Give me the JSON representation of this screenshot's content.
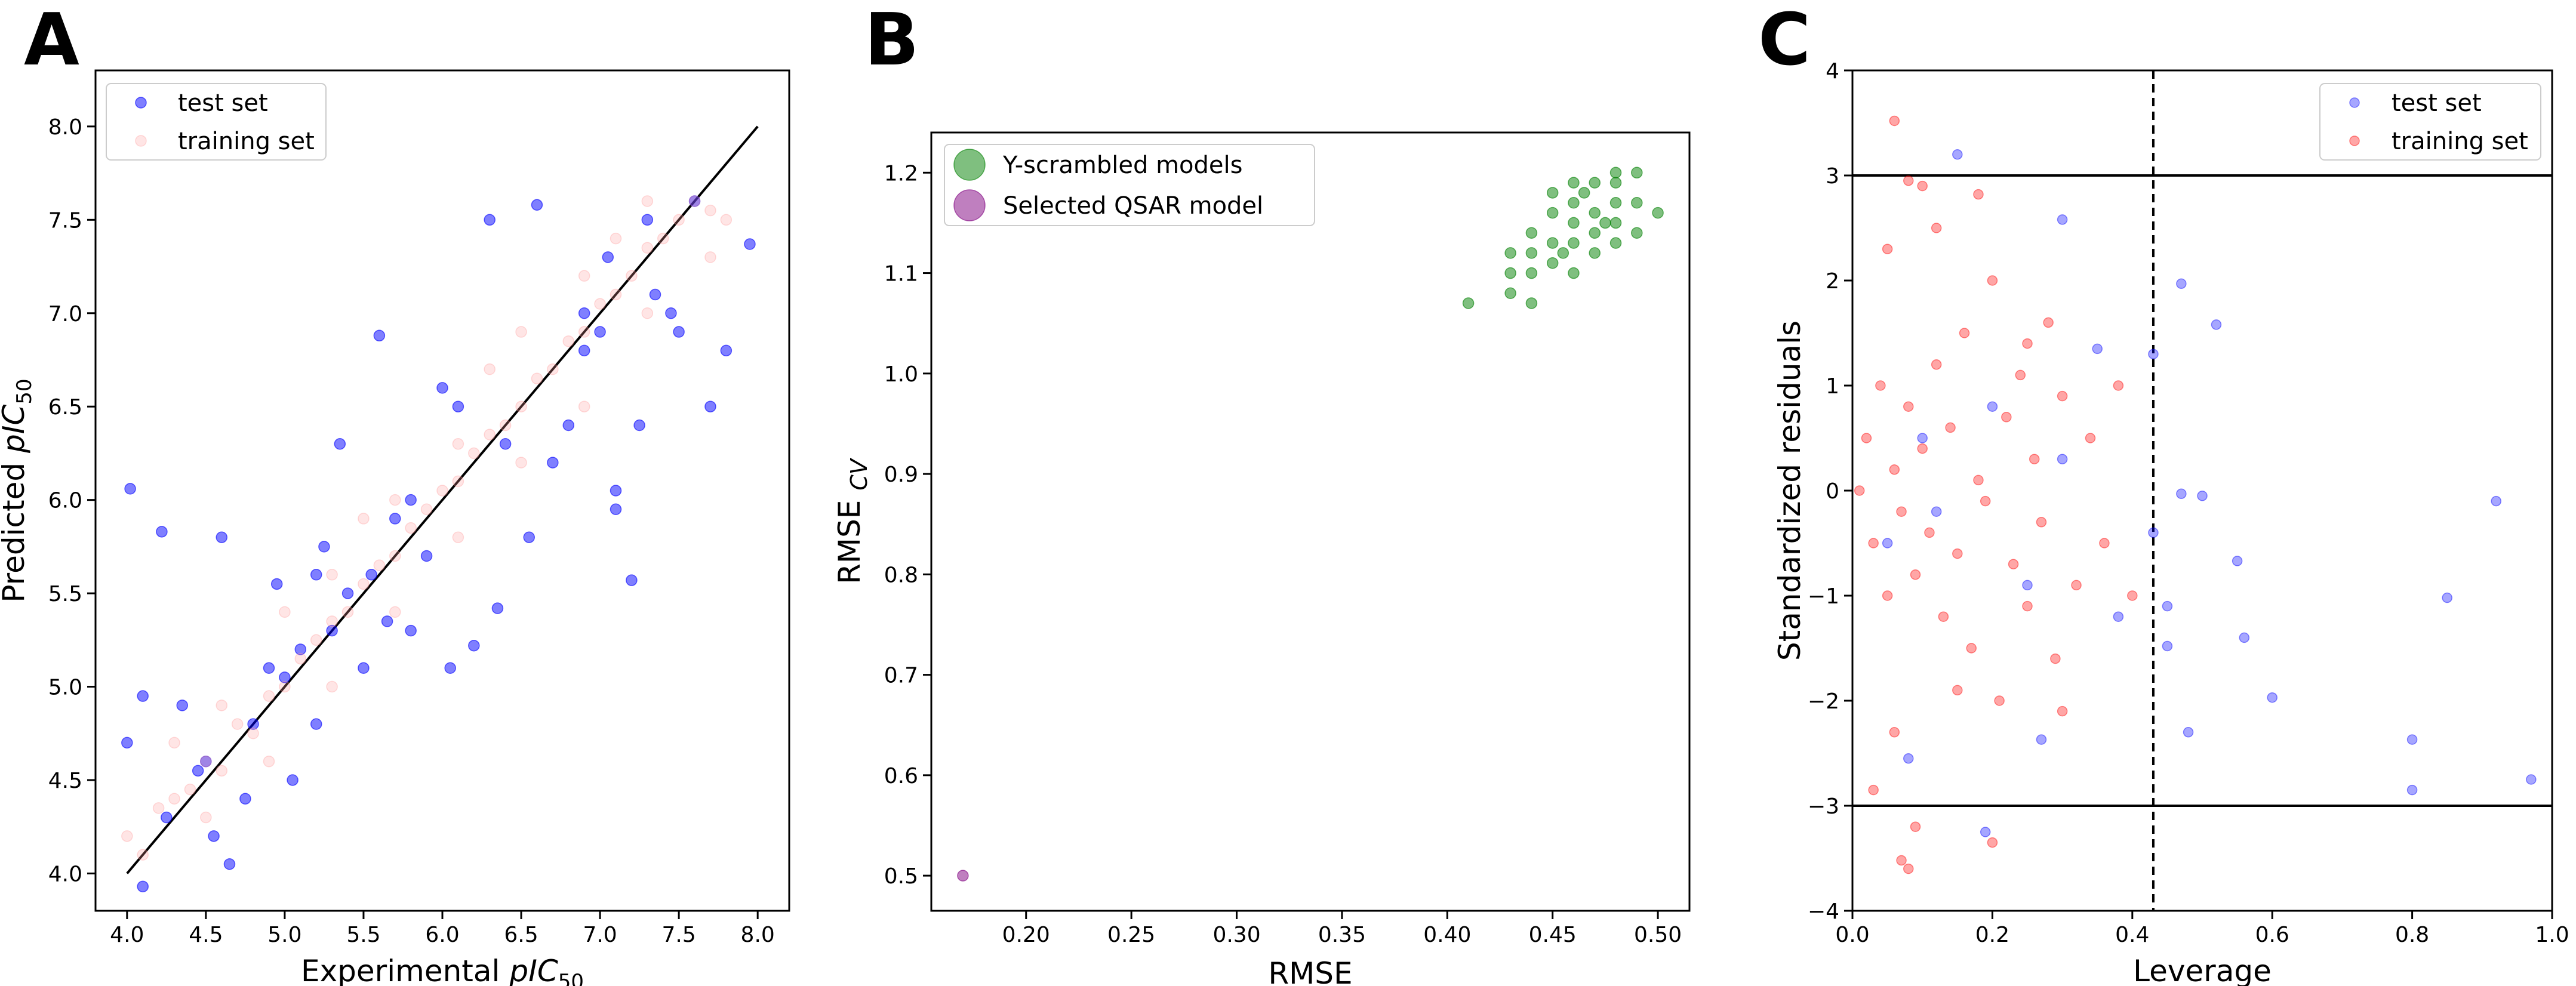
{
  "chart_data": [
    {
      "panel": "A",
      "type": "scatter",
      "xlabel": "Experimental",
      "xlabel_sym": "pIC",
      "ylabel": "Predicted",
      "ylabel_sym": "pIC",
      "sub": "50",
      "xlim": [
        3.8,
        8.2
      ],
      "ylim": [
        3.8,
        8.3
      ],
      "xticks": [
        "4.0",
        "4.5",
        "5.0",
        "5.5",
        "6.0",
        "6.5",
        "7.0",
        "7.5",
        "8.0"
      ],
      "yticks": [
        "4.0",
        "4.5",
        "5.0",
        "5.5",
        "6.0",
        "6.5",
        "7.0",
        "7.5",
        "8.0"
      ],
      "legend": [
        "test set",
        "training set"
      ],
      "legend_position": "upper-left",
      "identity_line": [
        [
          4.0,
          4.0
        ],
        [
          8.0,
          8.0
        ]
      ],
      "series": [
        {
          "name": "test set",
          "color": "#0000ff",
          "opacity": 0.5,
          "points": [
            [
              4.02,
              6.06
            ],
            [
              4.22,
              5.83
            ],
            [
              4.6,
              5.8
            ],
            [
              4.65,
              4.05
            ],
            [
              4.1,
              3.93
            ],
            [
              4.0,
              4.7
            ],
            [
              4.1,
              4.95
            ],
            [
              4.35,
              4.9
            ],
            [
              4.5,
              4.6
            ],
            [
              4.8,
              4.8
            ],
            [
              4.9,
              5.1
            ],
            [
              5.0,
              5.05
            ],
            [
              5.1,
              5.2
            ],
            [
              5.2,
              5.6
            ],
            [
              5.3,
              5.3
            ],
            [
              5.4,
              5.5
            ],
            [
              5.35,
              6.3
            ],
            [
              5.6,
              6.88
            ],
            [
              5.55,
              5.6
            ],
            [
              5.7,
              5.9
            ],
            [
              5.8,
              6.0
            ],
            [
              5.9,
              5.7
            ],
            [
              6.0,
              6.6
            ],
            [
              6.1,
              6.5
            ],
            [
              6.3,
              7.5
            ],
            [
              6.6,
              7.58
            ],
            [
              6.2,
              5.22
            ],
            [
              6.35,
              5.42
            ],
            [
              6.55,
              5.8
            ],
            [
              6.8,
              6.4
            ],
            [
              6.9,
              6.8
            ],
            [
              7.0,
              6.9
            ],
            [
              7.1,
              5.95
            ],
            [
              7.2,
              5.57
            ],
            [
              7.3,
              7.5
            ],
            [
              7.45,
              7.0
            ],
            [
              7.6,
              7.6
            ],
            [
              7.5,
              6.9
            ],
            [
              7.7,
              6.5
            ],
            [
              7.8,
              6.8
            ],
            [
              7.95,
              7.37
            ],
            [
              7.1,
              6.05
            ],
            [
              7.25,
              6.4
            ],
            [
              5.05,
              4.5
            ],
            [
              5.2,
              4.8
            ],
            [
              5.5,
              5.1
            ],
            [
              5.8,
              5.3
            ],
            [
              6.05,
              5.1
            ],
            [
              4.75,
              4.4
            ],
            [
              4.55,
              4.2
            ],
            [
              4.25,
              4.3
            ],
            [
              4.45,
              4.55
            ],
            [
              5.65,
              5.35
            ],
            [
              6.4,
              6.3
            ],
            [
              6.7,
              6.2
            ],
            [
              6.9,
              7.0
            ],
            [
              7.05,
              7.3
            ],
            [
              7.35,
              7.1
            ],
            [
              4.95,
              5.55
            ],
            [
              5.25,
              5.75
            ]
          ]
        },
        {
          "name": "training set",
          "color": "#ff9999",
          "opacity": 0.25,
          "points": [
            [
              4.0,
              4.2
            ],
            [
              4.1,
              4.1
            ],
            [
              4.2,
              4.35
            ],
            [
              4.3,
              4.4
            ],
            [
              4.4,
              4.45
            ],
            [
              4.5,
              4.6
            ],
            [
              4.6,
              4.55
            ],
            [
              4.7,
              4.8
            ],
            [
              4.8,
              4.75
            ],
            [
              4.9,
              4.95
            ],
            [
              5.0,
              5.0
            ],
            [
              5.1,
              5.15
            ],
            [
              5.2,
              5.25
            ],
            [
              5.3,
              5.35
            ],
            [
              5.4,
              5.4
            ],
            [
              5.5,
              5.55
            ],
            [
              5.6,
              5.65
            ],
            [
              5.7,
              5.7
            ],
            [
              5.8,
              5.85
            ],
            [
              5.9,
              5.95
            ],
            [
              6.0,
              6.05
            ],
            [
              6.1,
              6.1
            ],
            [
              6.2,
              6.25
            ],
            [
              6.3,
              6.35
            ],
            [
              6.4,
              6.4
            ],
            [
              6.5,
              6.5
            ],
            [
              6.6,
              6.65
            ],
            [
              6.7,
              6.7
            ],
            [
              6.8,
              6.85
            ],
            [
              6.9,
              6.9
            ],
            [
              7.0,
              7.05
            ],
            [
              7.1,
              7.1
            ],
            [
              7.2,
              7.2
            ],
            [
              7.3,
              7.35
            ],
            [
              7.4,
              7.4
            ],
            [
              7.5,
              7.5
            ],
            [
              7.6,
              7.6
            ],
            [
              7.7,
              7.55
            ],
            [
              7.8,
              7.5
            ],
            [
              4.3,
              4.7
            ],
            [
              4.6,
              4.9
            ],
            [
              5.0,
              5.4
            ],
            [
              5.3,
              5.6
            ],
            [
              5.7,
              6.0
            ],
            [
              6.1,
              6.3
            ],
            [
              6.5,
              6.9
            ],
            [
              6.9,
              7.2
            ],
            [
              7.3,
              7.6
            ],
            [
              4.5,
              4.3
            ],
            [
              4.9,
              4.6
            ],
            [
              5.3,
              5.0
            ],
            [
              5.7,
              5.4
            ],
            [
              6.1,
              5.8
            ],
            [
              6.5,
              6.2
            ],
            [
              6.9,
              6.5
            ],
            [
              7.3,
              7.0
            ],
            [
              7.7,
              7.3
            ],
            [
              5.5,
              5.9
            ],
            [
              6.3,
              6.7
            ],
            [
              7.1,
              7.4
            ]
          ]
        }
      ]
    },
    {
      "panel": "B",
      "type": "scatter",
      "xlabel": "RMSE",
      "ylabel": "RMSE",
      "ylabel_sub": "CV",
      "xlim": [
        0.155,
        0.515
      ],
      "ylim": [
        0.465,
        1.24
      ],
      "xticks": [
        "0.20",
        "0.25",
        "0.30",
        "0.35",
        "0.40",
        "0.45",
        "0.50"
      ],
      "yticks": [
        "0.5",
        "0.6",
        "0.7",
        "0.8",
        "0.9",
        "1.0",
        "1.1",
        "1.2"
      ],
      "legend": [
        "Y-scrambled models",
        "Selected QSAR model"
      ],
      "legend_position": "upper-left",
      "series": [
        {
          "name": "Y-scrambled models",
          "color": "#008000",
          "opacity": 0.5,
          "points": [
            [
              0.41,
              1.07
            ],
            [
              0.43,
              1.08
            ],
            [
              0.43,
              1.1
            ],
            [
              0.43,
              1.12
            ],
            [
              0.44,
              1.07
            ],
            [
              0.44,
              1.1
            ],
            [
              0.44,
              1.14
            ],
            [
              0.45,
              1.11
            ],
            [
              0.45,
              1.13
            ],
            [
              0.45,
              1.16
            ],
            [
              0.45,
              1.18
            ],
            [
              0.46,
              1.1
            ],
            [
              0.46,
              1.13
            ],
            [
              0.46,
              1.15
            ],
            [
              0.46,
              1.17
            ],
            [
              0.47,
              1.12
            ],
            [
              0.47,
              1.14
            ],
            [
              0.47,
              1.16
            ],
            [
              0.47,
              1.19
            ],
            [
              0.48,
              1.13
            ],
            [
              0.48,
              1.15
            ],
            [
              0.48,
              1.17
            ],
            [
              0.48,
              1.19
            ],
            [
              0.49,
              1.2
            ],
            [
              0.49,
              1.17
            ],
            [
              0.5,
              1.16
            ],
            [
              0.49,
              1.14
            ],
            [
              0.455,
              1.12
            ],
            [
              0.465,
              1.18
            ],
            [
              0.475,
              1.15
            ],
            [
              0.44,
              1.12
            ],
            [
              0.46,
              1.19
            ],
            [
              0.48,
              1.2
            ]
          ]
        },
        {
          "name": "Selected QSAR model",
          "color": "#800080",
          "opacity": 0.5,
          "points": [
            [
              0.17,
              0.5
            ]
          ]
        }
      ]
    },
    {
      "panel": "C",
      "type": "scatter",
      "xlabel": "Leverage",
      "ylabel": "Standardized residuals",
      "xlim": [
        0.0,
        1.0
      ],
      "ylim": [
        -4,
        4
      ],
      "xticks": [
        "0.0",
        "0.2",
        "0.4",
        "0.6",
        "0.8",
        "1.0"
      ],
      "yticks": [
        "−4",
        "−3",
        "−2",
        "−1",
        "0",
        "1",
        "2",
        "3",
        "4"
      ],
      "legend": [
        "test set",
        "training set"
      ],
      "legend_position": "upper-right",
      "hlines": [
        3,
        -3
      ],
      "vline": 0.43,
      "series": [
        {
          "name": "test set",
          "color": "#0000ff",
          "opacity": 0.35,
          "points": [
            [
              0.92,
              -0.1
            ],
            [
              0.97,
              -2.75
            ],
            [
              0.85,
              -1.02
            ],
            [
              0.8,
              -2.37
            ],
            [
              0.8,
              -2.85
            ],
            [
              0.6,
              -1.97
            ],
            [
              0.56,
              -1.4
            ],
            [
              0.55,
              -0.67
            ],
            [
              0.52,
              1.58
            ],
            [
              0.5,
              -0.05
            ],
            [
              0.48,
              -2.3
            ],
            [
              0.47,
              -0.03
            ],
            [
              0.47,
              1.97
            ],
            [
              0.45,
              -1.48
            ],
            [
              0.45,
              -1.1
            ],
            [
              0.43,
              -0.4
            ],
            [
              0.43,
              1.3
            ],
            [
              0.35,
              1.35
            ],
            [
              0.3,
              2.58
            ],
            [
              0.27,
              -2.37
            ],
            [
              0.15,
              3.2
            ],
            [
              0.19,
              -3.25
            ],
            [
              0.08,
              -2.55
            ],
            [
              0.05,
              -0.5
            ],
            [
              0.1,
              0.5
            ],
            [
              0.12,
              -0.2
            ],
            [
              0.2,
              0.8
            ],
            [
              0.25,
              -0.9
            ],
            [
              0.3,
              0.3
            ],
            [
              0.38,
              -1.2
            ]
          ]
        },
        {
          "name": "training set",
          "color": "#ff0000",
          "opacity": 0.35,
          "points": [
            [
              0.01,
              0.0
            ],
            [
              0.02,
              0.5
            ],
            [
              0.03,
              -0.5
            ],
            [
              0.04,
              1.0
            ],
            [
              0.05,
              -1.0
            ],
            [
              0.06,
              0.2
            ],
            [
              0.07,
              -0.2
            ],
            [
              0.08,
              0.8
            ],
            [
              0.09,
              -0.8
            ],
            [
              0.1,
              0.4
            ],
            [
              0.11,
              -0.4
            ],
            [
              0.12,
              1.2
            ],
            [
              0.13,
              -1.2
            ],
            [
              0.14,
              0.6
            ],
            [
              0.15,
              -0.6
            ],
            [
              0.16,
              1.5
            ],
            [
              0.17,
              -1.5
            ],
            [
              0.18,
              0.1
            ],
            [
              0.19,
              -0.1
            ],
            [
              0.2,
              2.0
            ],
            [
              0.21,
              -2.0
            ],
            [
              0.22,
              0.7
            ],
            [
              0.23,
              -0.7
            ],
            [
              0.24,
              1.1
            ],
            [
              0.25,
              -1.1
            ],
            [
              0.26,
              0.3
            ],
            [
              0.27,
              -0.3
            ],
            [
              0.28,
              1.6
            ],
            [
              0.29,
              -1.6
            ],
            [
              0.3,
              0.9
            ],
            [
              0.32,
              -0.9
            ],
            [
              0.34,
              0.5
            ],
            [
              0.36,
              -0.5
            ],
            [
              0.38,
              1.0
            ],
            [
              0.4,
              -1.0
            ],
            [
              0.06,
              3.52
            ],
            [
              0.08,
              2.95
            ],
            [
              0.1,
              2.9
            ],
            [
              0.12,
              2.5
            ],
            [
              0.18,
              2.82
            ],
            [
              0.07,
              -3.52
            ],
            [
              0.08,
              -3.6
            ],
            [
              0.09,
              -3.2
            ],
            [
              0.2,
              -3.35
            ],
            [
              0.03,
              -2.85
            ],
            [
              0.05,
              2.3
            ],
            [
              0.06,
              -2.3
            ],
            [
              0.15,
              -1.9
            ],
            [
              0.25,
              1.4
            ],
            [
              0.3,
              -2.1
            ]
          ]
        }
      ]
    }
  ]
}
